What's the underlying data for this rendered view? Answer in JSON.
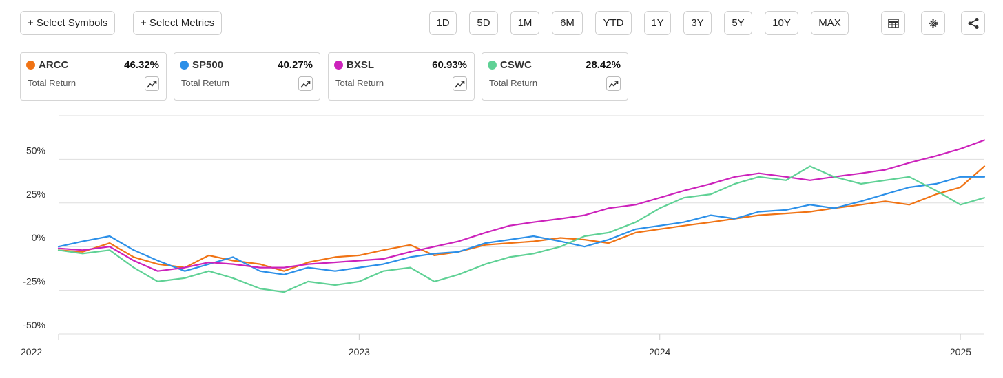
{
  "toolbar": {
    "select_symbols": "+ Select Symbols",
    "select_metrics": "+ Select Metrics",
    "ranges": [
      "1D",
      "5D",
      "1M",
      "6M",
      "YTD",
      "1Y",
      "3Y",
      "5Y",
      "10Y",
      "MAX"
    ],
    "icons": [
      "table-icon",
      "gear-icon",
      "share-icon"
    ]
  },
  "cards": [
    {
      "symbol": "ARCC",
      "value": "46.32%",
      "metric": "Total Return",
      "color": "#f07314"
    },
    {
      "symbol": "SP500",
      "value": "40.27%",
      "metric": "Total Return",
      "color": "#2b8fe8"
    },
    {
      "symbol": "BXSL",
      "value": "60.93%",
      "metric": "Total Return",
      "color": "#cc22bb"
    },
    {
      "symbol": "CSWC",
      "value": "28.42%",
      "metric": "Total Return",
      "color": "#5fd195"
    }
  ],
  "chart_data": {
    "type": "line",
    "x_ticks": [
      "2022",
      "2023",
      "2024",
      "2025"
    ],
    "y_ticks": [
      "50%",
      "25%",
      "0%",
      "-25%",
      "-50%"
    ],
    "y_tick_values": [
      50,
      25,
      0,
      -25,
      -50
    ],
    "ylim": [
      -50,
      75
    ],
    "xlim": [
      2022.0,
      2025.08
    ],
    "grid": true,
    "series": [
      {
        "name": "ARCC",
        "color": "#f07314",
        "x": [
          2022.0,
          2022.08,
          2022.17,
          2022.25,
          2022.33,
          2022.42,
          2022.5,
          2022.58,
          2022.67,
          2022.75,
          2022.83,
          2022.92,
          2023.0,
          2023.08,
          2023.17,
          2023.25,
          2023.33,
          2023.42,
          2023.5,
          2023.58,
          2023.67,
          2023.75,
          2023.83,
          2023.92,
          2024.0,
          2024.08,
          2024.17,
          2024.25,
          2024.33,
          2024.42,
          2024.5,
          2024.58,
          2024.67,
          2024.75,
          2024.83,
          2024.92,
          2025.0,
          2025.08
        ],
        "y": [
          -2,
          -3,
          2,
          -6,
          -10,
          -12,
          -5,
          -8,
          -10,
          -14,
          -9,
          -6,
          -5,
          -2,
          1,
          -5,
          -3,
          1,
          2,
          3,
          5,
          4,
          2,
          8,
          10,
          12,
          14,
          16,
          18,
          19,
          20,
          22,
          24,
          26,
          24,
          30,
          34,
          46
        ]
      },
      {
        "name": "SP500",
        "color": "#2b8fe8",
        "x": [
          2022.0,
          2022.08,
          2022.17,
          2022.25,
          2022.33,
          2022.42,
          2022.5,
          2022.58,
          2022.67,
          2022.75,
          2022.83,
          2022.92,
          2023.0,
          2023.08,
          2023.17,
          2023.25,
          2023.33,
          2023.42,
          2023.5,
          2023.58,
          2023.67,
          2023.75,
          2023.83,
          2023.92,
          2024.0,
          2024.08,
          2024.17,
          2024.25,
          2024.33,
          2024.42,
          2024.5,
          2024.58,
          2024.67,
          2024.75,
          2024.83,
          2024.92,
          2025.0,
          2025.08
        ],
        "y": [
          0,
          3,
          6,
          -2,
          -8,
          -14,
          -10,
          -6,
          -14,
          -16,
          -12,
          -14,
          -12,
          -10,
          -6,
          -4,
          -3,
          2,
          4,
          6,
          3,
          0,
          4,
          10,
          12,
          14,
          18,
          16,
          20,
          21,
          24,
          22,
          26,
          30,
          34,
          36,
          40,
          40
        ]
      },
      {
        "name": "BXSL",
        "color": "#cc22bb",
        "x": [
          2022.0,
          2022.08,
          2022.17,
          2022.25,
          2022.33,
          2022.42,
          2022.5,
          2022.58,
          2022.67,
          2022.75,
          2022.83,
          2022.92,
          2023.0,
          2023.08,
          2023.17,
          2023.25,
          2023.33,
          2023.42,
          2023.5,
          2023.58,
          2023.67,
          2023.75,
          2023.83,
          2023.92,
          2024.0,
          2024.08,
          2024.17,
          2024.25,
          2024.33,
          2024.42,
          2024.5,
          2024.58,
          2024.67,
          2024.75,
          2024.83,
          2024.92,
          2025.0,
          2025.08
        ],
        "y": [
          -1,
          -2,
          0,
          -8,
          -14,
          -12,
          -9,
          -10,
          -12,
          -12,
          -10,
          -9,
          -8,
          -7,
          -3,
          0,
          3,
          8,
          12,
          14,
          16,
          18,
          22,
          24,
          28,
          32,
          36,
          40,
          42,
          40,
          38,
          40,
          42,
          44,
          48,
          52,
          56,
          61
        ]
      },
      {
        "name": "CSWC",
        "color": "#5fd195",
        "x": [
          2022.0,
          2022.08,
          2022.17,
          2022.25,
          2022.33,
          2022.42,
          2022.5,
          2022.58,
          2022.67,
          2022.75,
          2022.83,
          2022.92,
          2023.0,
          2023.08,
          2023.17,
          2023.25,
          2023.33,
          2023.42,
          2023.5,
          2023.58,
          2023.67,
          2023.75,
          2023.83,
          2023.92,
          2024.0,
          2024.08,
          2024.17,
          2024.25,
          2024.33,
          2024.42,
          2024.5,
          2024.58,
          2024.67,
          2024.75,
          2024.83,
          2024.92,
          2025.0,
          2025.08
        ],
        "y": [
          -2,
          -4,
          -2,
          -12,
          -20,
          -18,
          -14,
          -18,
          -24,
          -26,
          -20,
          -22,
          -20,
          -14,
          -12,
          -20,
          -16,
          -10,
          -6,
          -4,
          0,
          6,
          8,
          14,
          22,
          28,
          30,
          36,
          40,
          38,
          46,
          40,
          36,
          38,
          40,
          32,
          24,
          28
        ]
      }
    ]
  }
}
